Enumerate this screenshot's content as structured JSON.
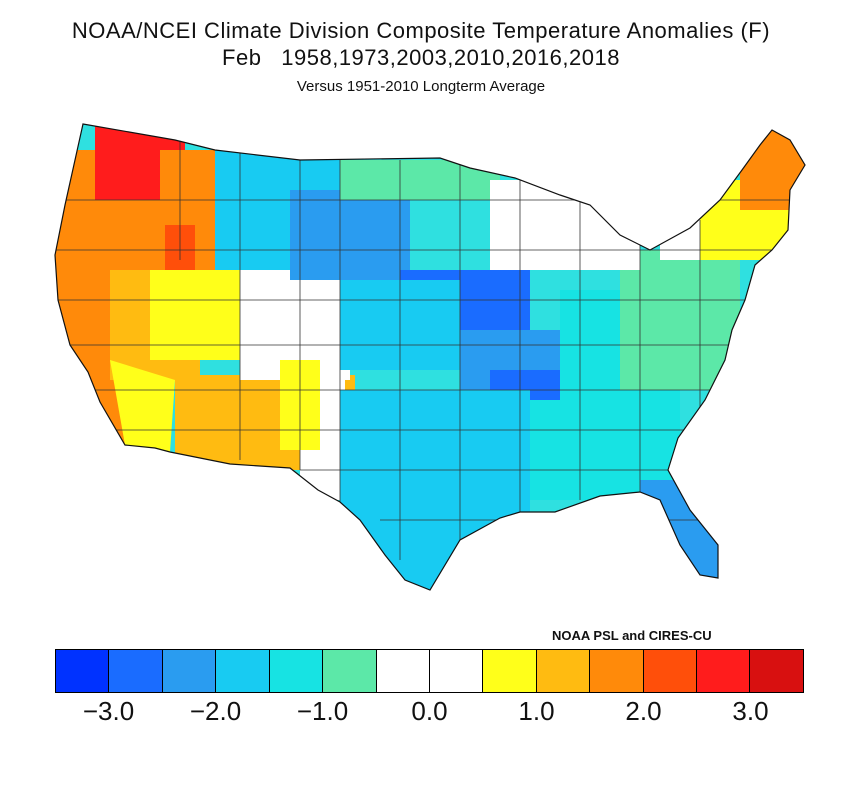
{
  "header": {
    "title": "NOAA/NCEI Climate Division Composite Temperature Anomalies (F)",
    "subtitle": "Feb   1958,1973,2003,2010,2016,2018",
    "note": "Versus 1951-2010 Longterm Average"
  },
  "credit": "NOAA PSL and CIRES-CU",
  "legend": {
    "colors": [
      "#0032ff",
      "#1a6cff",
      "#2a9cf0",
      "#18cbf2",
      "#17e3e3",
      "#5ce8a8",
      "#ffffff",
      "#ffffff",
      "#ffff1a",
      "#ffbb11",
      "#ff8a0a",
      "#ff4f0a",
      "#ff1c1c",
      "#d81010"
    ],
    "ticks": [
      {
        "label": "−3.0",
        "at": 1
      },
      {
        "label": "−2.0",
        "at": 3
      },
      {
        "label": "−1.0",
        "at": 5
      },
      {
        "label": "0.0",
        "at": 7
      },
      {
        "label": "1.0",
        "at": 9
      },
      {
        "label": "2.0",
        "at": 11
      },
      {
        "label": "3.0",
        "at": 13
      }
    ]
  },
  "map_regions": [
    {
      "name": "washington",
      "color": "#ff4f0a"
    },
    {
      "name": "oregon",
      "color": "#ff8a0a"
    },
    {
      "name": "california",
      "color": "#ff8a0a"
    },
    {
      "name": "idaho-montana-west",
      "color": "#ff8a0a"
    },
    {
      "name": "nevada",
      "color": "#ffbb11"
    },
    {
      "name": "arizona-new-mexico",
      "color": "#ffbb11"
    },
    {
      "name": "utah-colorado",
      "color": "#ffffff"
    },
    {
      "name": "northern-plains",
      "color": "#18cbf2"
    },
    {
      "name": "central-plains",
      "color": "#2a9cf0"
    },
    {
      "name": "midwest",
      "color": "#1a6cff"
    },
    {
      "name": "south-central",
      "color": "#18cbf2"
    },
    {
      "name": "southeast",
      "color": "#17e3e3"
    },
    {
      "name": "mid-atlantic",
      "color": "#5ce8a8"
    },
    {
      "name": "great-lakes",
      "color": "#ffffff"
    },
    {
      "name": "new-england",
      "color": "#ffff1a"
    },
    {
      "name": "maine",
      "color": "#ff8a0a"
    }
  ]
}
